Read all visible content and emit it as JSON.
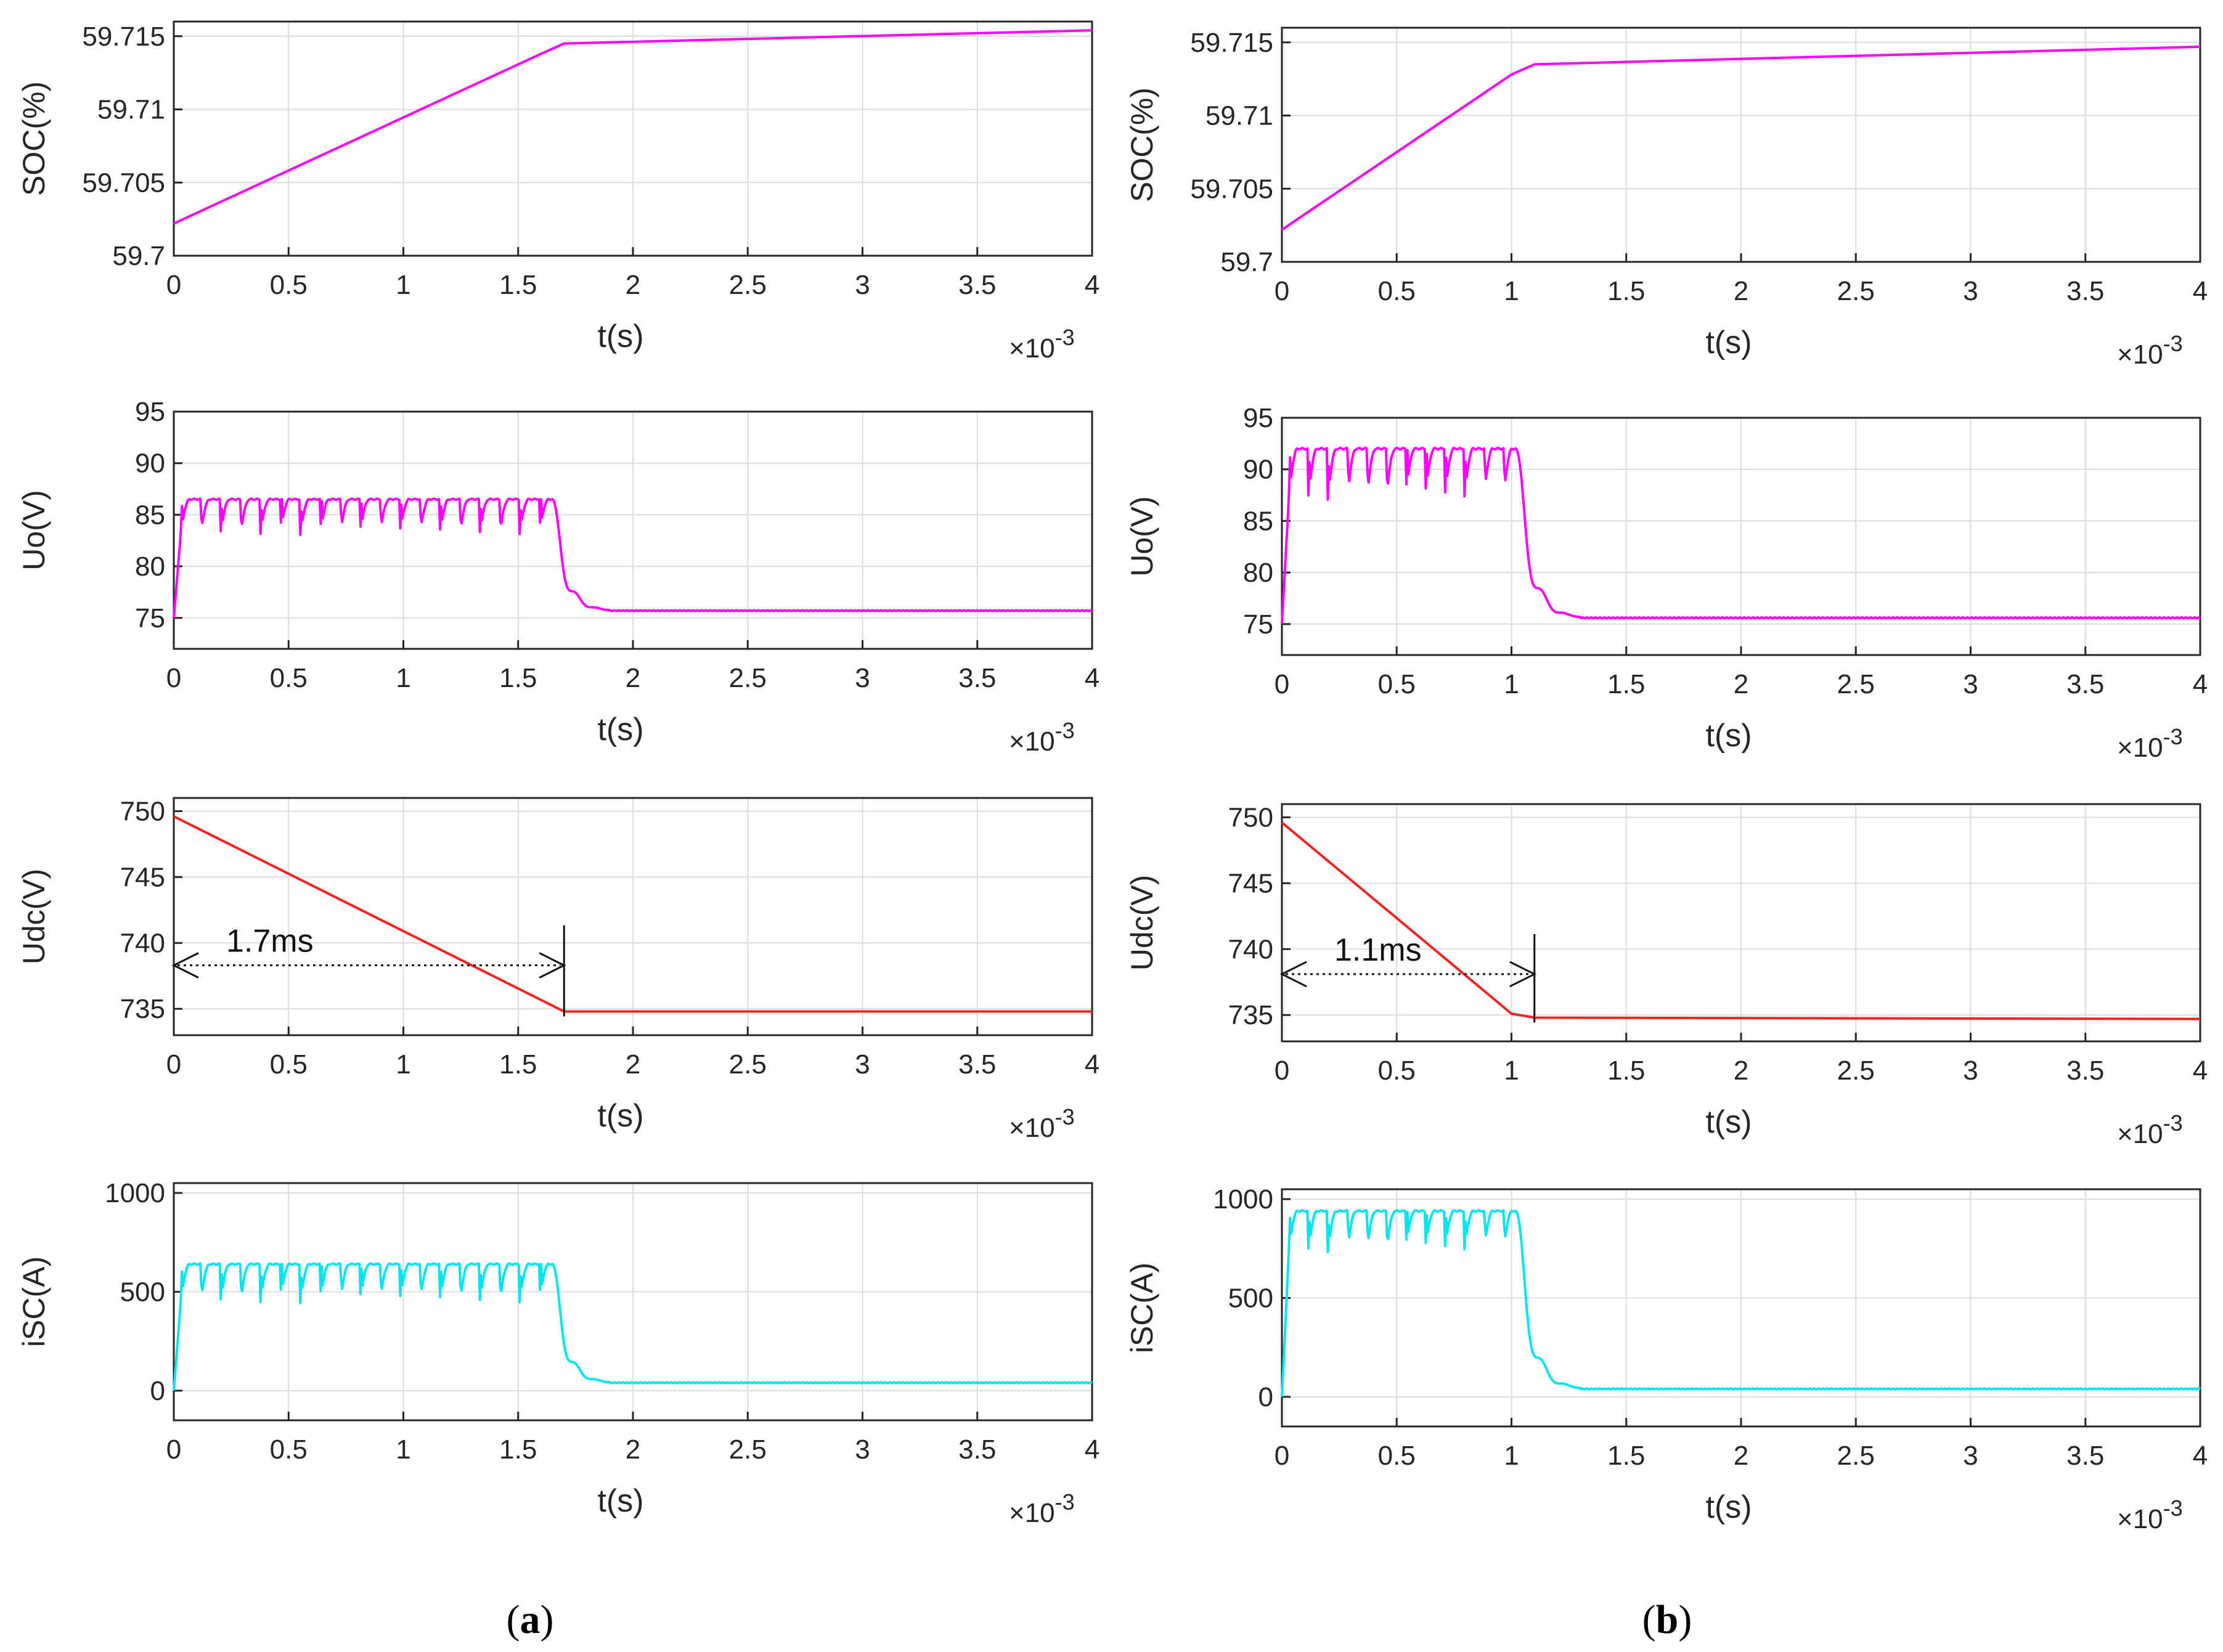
{
  "figure": {
    "columns": [
      {
        "label": "(",
        "bold": "a",
        "close": ")"
      },
      {
        "label": "(",
        "bold": "b",
        "close": ")"
      }
    ],
    "x_multiplier": {
      "base": "×10",
      "exp": "-3"
    }
  },
  "chart_data": [
    {
      "type": "line",
      "column": 0,
      "row": 0,
      "title": "",
      "xlabel": "t(s)",
      "ylabel": "SOC(%)",
      "color": "#ff00ff",
      "xlim": [
        0,
        4
      ],
      "ylim": [
        59.7,
        59.716
      ],
      "xticks": [
        "0",
        "0.5",
        "1",
        "1.5",
        "2",
        "2.5",
        "3",
        "3.5",
        "4"
      ],
      "yticks": [
        {
          "v": 59.7,
          "t": "59.7"
        },
        {
          "v": 59.705,
          "t": "59.705"
        },
        {
          "v": 59.71,
          "t": "59.71"
        },
        {
          "v": 59.715,
          "t": "59.715"
        }
      ],
      "series": [
        {
          "name": "SOC",
          "shape": "ramp",
          "x": [
            0,
            1.6,
            1.7,
            4
          ],
          "y": [
            59.7022,
            59.7138,
            59.7145,
            59.7154
          ]
        }
      ]
    },
    {
      "type": "line",
      "column": 0,
      "row": 1,
      "title": "",
      "xlabel": "t(s)",
      "ylabel": "Uo(V)",
      "color": "#ff00ff",
      "xlim": [
        0,
        4
      ],
      "ylim": [
        72,
        95
      ],
      "xticks": [
        "0",
        "0.5",
        "1",
        "1.5",
        "2",
        "2.5",
        "3",
        "3.5",
        "4"
      ],
      "yticks": [
        {
          "v": 75,
          "t": "75"
        },
        {
          "v": 80,
          "t": "80"
        },
        {
          "v": 85,
          "t": "85"
        },
        {
          "v": 90,
          "t": "90"
        },
        {
          "v": 95,
          "t": "95"
        }
      ],
      "series": [
        {
          "name": "Uo",
          "shape": "ripple",
          "t_end": 1.65,
          "start": 75,
          "high": 86.5,
          "low": 83,
          "cycles": 19,
          "settle": 75.7,
          "t_settle": 1.9
        }
      ]
    },
    {
      "type": "line",
      "column": 0,
      "row": 2,
      "title": "",
      "xlabel": "t(s)",
      "ylabel": "Udc(V)",
      "color": "#ff2020",
      "xlim": [
        0,
        4
      ],
      "ylim": [
        733,
        751
      ],
      "xticks": [
        "0",
        "0.5",
        "1",
        "1.5",
        "2",
        "2.5",
        "3",
        "3.5",
        "4"
      ],
      "yticks": [
        {
          "v": 735,
          "t": "735"
        },
        {
          "v": 740,
          "t": "740"
        },
        {
          "v": 745,
          "t": "745"
        },
        {
          "v": 750,
          "t": "750"
        }
      ],
      "series": [
        {
          "name": "Udc",
          "shape": "ramp",
          "x": [
            0,
            1.7,
            4
          ],
          "y": [
            749.6,
            734.8,
            734.8
          ]
        }
      ],
      "annotation": {
        "text": "1.7ms",
        "x_from": 0,
        "x_to": 1.7,
        "y": 738.3
      }
    },
    {
      "type": "line",
      "column": 0,
      "row": 3,
      "title": "",
      "xlabel": "t(s)",
      "ylabel": "iSC(A)",
      "color": "#00e5ee",
      "xlim": [
        0,
        4
      ],
      "ylim": [
        -150,
        1050
      ],
      "xticks": [
        "0",
        "0.5",
        "1",
        "1.5",
        "2",
        "2.5",
        "3",
        "3.5",
        "4"
      ],
      "yticks": [
        {
          "v": 0,
          "t": "0"
        },
        {
          "v": 500,
          "t": "500"
        },
        {
          "v": 1000,
          "t": "1000"
        }
      ],
      "series": [
        {
          "name": "iSC",
          "shape": "ripple",
          "t_end": 1.65,
          "start": 0,
          "high": 640,
          "low": 440,
          "cycles": 19,
          "settle": 40,
          "t_settle": 1.9
        }
      ]
    },
    {
      "type": "line",
      "column": 1,
      "row": 0,
      "title": "",
      "xlabel": "t(s)",
      "ylabel": "SOC(%)",
      "color": "#ff00ff",
      "xlim": [
        0,
        4
      ],
      "ylim": [
        59.7,
        59.716
      ],
      "xticks": [
        "0",
        "0.5",
        "1",
        "1.5",
        "2",
        "2.5",
        "3",
        "3.5",
        "4"
      ],
      "yticks": [
        {
          "v": 59.7,
          "t": "59.7"
        },
        {
          "v": 59.705,
          "t": "59.705"
        },
        {
          "v": 59.71,
          "t": "59.71"
        },
        {
          "v": 59.715,
          "t": "59.715"
        }
      ],
      "series": [
        {
          "name": "SOC",
          "shape": "ramp",
          "x": [
            0,
            1.0,
            1.1,
            4
          ],
          "y": [
            59.7022,
            59.7128,
            59.7135,
            59.7147
          ]
        }
      ]
    },
    {
      "type": "line",
      "column": 1,
      "row": 1,
      "title": "",
      "xlabel": "t(s)",
      "ylabel": "Uo(V)",
      "color": "#ff00ff",
      "xlim": [
        0,
        4
      ],
      "ylim": [
        72,
        95
      ],
      "xticks": [
        "0",
        "0.5",
        "1",
        "1.5",
        "2",
        "2.5",
        "3",
        "3.5",
        "4"
      ],
      "yticks": [
        {
          "v": 75,
          "t": "75"
        },
        {
          "v": 80,
          "t": "80"
        },
        {
          "v": 85,
          "t": "85"
        },
        {
          "v": 90,
          "t": "90"
        },
        {
          "v": 95,
          "t": "95"
        }
      ],
      "series": [
        {
          "name": "Uo",
          "shape": "ripple",
          "t_end": 1.02,
          "start": 75,
          "high": 92,
          "low": 87,
          "cycles": 12,
          "settle": 75.6,
          "t_settle": 1.3
        }
      ]
    },
    {
      "type": "line",
      "column": 1,
      "row": 2,
      "title": "",
      "xlabel": "t(s)",
      "ylabel": "Udc(V)",
      "color": "#ff2020",
      "xlim": [
        0,
        4
      ],
      "ylim": [
        733,
        751
      ],
      "xticks": [
        "0",
        "0.5",
        "1",
        "1.5",
        "2",
        "2.5",
        "3",
        "3.5",
        "4"
      ],
      "yticks": [
        {
          "v": 735,
          "t": "735"
        },
        {
          "v": 740,
          "t": "740"
        },
        {
          "v": 745,
          "t": "745"
        },
        {
          "v": 750,
          "t": "750"
        }
      ],
      "series": [
        {
          "name": "Udc",
          "shape": "ramp",
          "x": [
            0,
            1.0,
            1.1,
            4
          ],
          "y": [
            749.6,
            735.1,
            734.8,
            734.7
          ]
        }
      ],
      "annotation": {
        "text": "1.1ms",
        "x_from": 0,
        "x_to": 1.1,
        "y": 738.1
      }
    },
    {
      "type": "line",
      "column": 1,
      "row": 3,
      "title": "",
      "xlabel": "t(s)",
      "ylabel": "iSC(A)",
      "color": "#00e5ee",
      "xlim": [
        0,
        4
      ],
      "ylim": [
        -150,
        1050
      ],
      "xticks": [
        "0",
        "0.5",
        "1",
        "1.5",
        "2",
        "2.5",
        "3",
        "3.5",
        "4"
      ],
      "yticks": [
        {
          "v": 0,
          "t": "0"
        },
        {
          "v": 500,
          "t": "500"
        },
        {
          "v": 1000,
          "t": "1000"
        }
      ],
      "series": [
        {
          "name": "iSC",
          "shape": "ripple",
          "t_end": 1.02,
          "start": 0,
          "high": 940,
          "low": 730,
          "cycles": 12,
          "settle": 40,
          "t_settle": 1.3
        }
      ]
    }
  ]
}
